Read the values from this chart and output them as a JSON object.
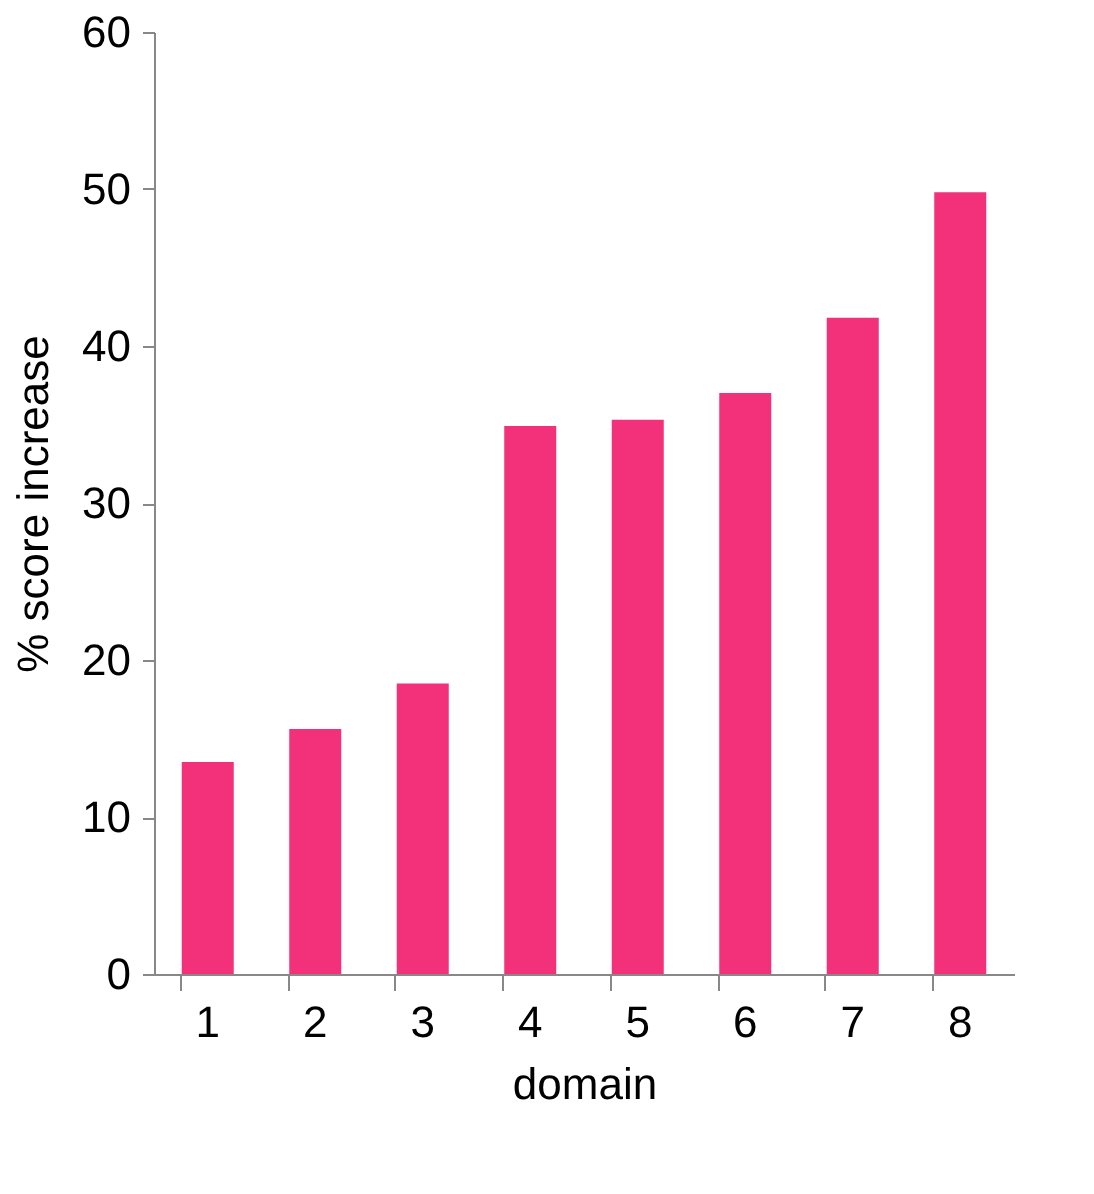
{
  "chart_data": {
    "type": "bar",
    "xlabel": "domain",
    "ylabel": "% score increase",
    "categories": [
      "1",
      "2",
      "3",
      "4",
      "5",
      "6",
      "7",
      "8"
    ],
    "values": [
      13.5,
      15.6,
      18.5,
      34.9,
      35.3,
      37.0,
      41.8,
      49.8
    ],
    "color": "#f2317a",
    "ylim": [
      0,
      60
    ],
    "yticks": [
      0,
      10,
      20,
      30,
      40,
      50,
      60
    ],
    "grid": false
  }
}
